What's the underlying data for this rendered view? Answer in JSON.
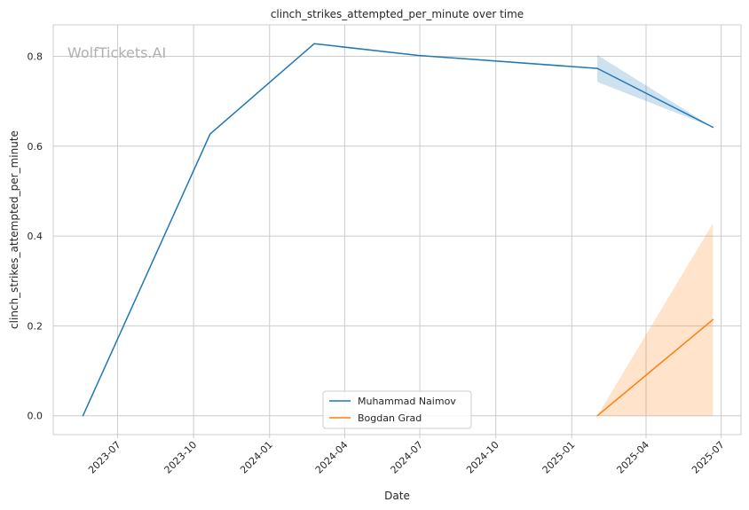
{
  "chart_data": {
    "type": "line",
    "title": "clinch_strikes_attempted_per_minute over time",
    "xlabel": "Date",
    "ylabel": "clinch_strikes_attempted_per_minute",
    "watermark": "WolfTickets.AI",
    "xlim": [
      "2023-04-14",
      "2025-07-25"
    ],
    "ylim": [
      -0.042,
      0.87
    ],
    "x_ticks": [
      "2023-07",
      "2023-10",
      "2024-01",
      "2024-04",
      "2024-07",
      "2024-10",
      "2025-01",
      "2025-04",
      "2025-07"
    ],
    "y_ticks": [
      "0.0",
      "0.2",
      "0.4",
      "0.6",
      "0.8"
    ],
    "grid": true,
    "legend_position": "bottom-center",
    "series": [
      {
        "name": "Muhammad Naimov",
        "color": "#1f77b4",
        "points": [
          {
            "x": "2023-05-20",
            "y": 0.0
          },
          {
            "x": "2023-10-21",
            "y": 0.627
          },
          {
            "x": "2024-02-24",
            "y": 0.828
          },
          {
            "x": "2024-06-29",
            "y": 0.802
          },
          {
            "x": "2025-02-01",
            "y": 0.773
          },
          {
            "x": "2025-06-21",
            "y": 0.642
          }
        ],
        "ci_band": [
          {
            "x": "2025-02-01",
            "low": 0.743,
            "high": 0.803
          },
          {
            "x": "2025-06-21",
            "low": 0.642,
            "high": 0.642
          }
        ]
      },
      {
        "name": "Bogdan Grad",
        "color": "#ff7f0e",
        "points": [
          {
            "x": "2025-02-01",
            "y": 0.0
          },
          {
            "x": "2025-06-21",
            "y": 0.214
          }
        ],
        "ci_band": [
          {
            "x": "2025-02-01",
            "low": 0.0,
            "high": 0.0
          },
          {
            "x": "2025-06-21",
            "low": 0.0,
            "high": 0.428
          }
        ]
      }
    ]
  }
}
